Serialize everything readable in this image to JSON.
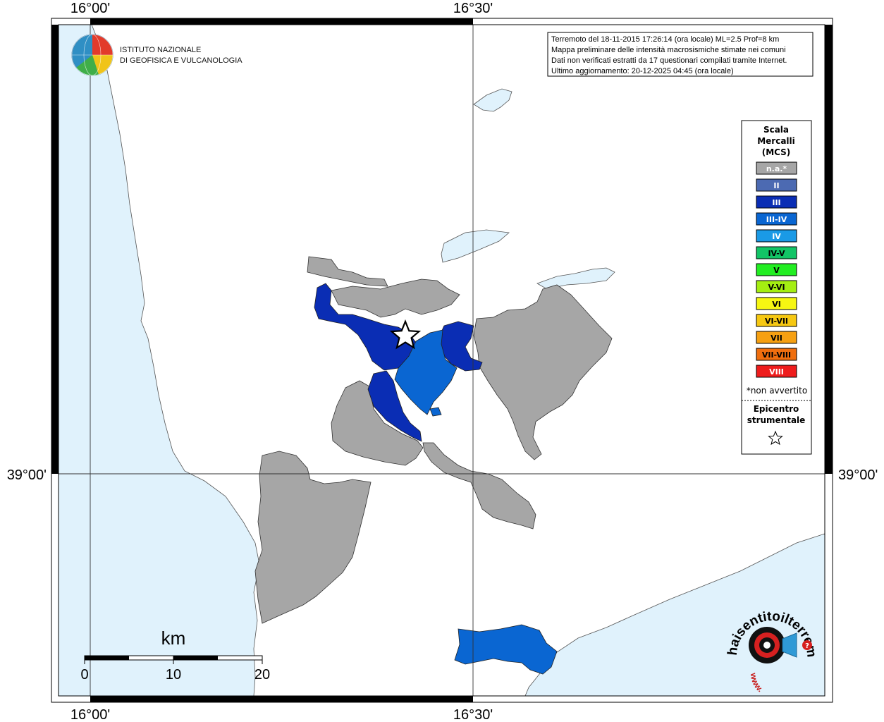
{
  "coordinates": {
    "top_left": "16°00'",
    "top_right": "16°30'",
    "bottom_left": "16°00'",
    "bottom_right": "16°30'",
    "left_lat": "39°00'",
    "right_lat": "39°00'"
  },
  "institute": {
    "line1": "ISTITUTO NAZIONALE",
    "line2": "DI GEOFISICA E VULCANOLOGIA"
  },
  "info_box": {
    "line1": "Terremoto del 18-11-2015 17:26:14 (ora locale) ML=2.5 Prof=8 km",
    "line2": "Mappa preliminare delle intensità macrosismiche stimate nei comuni",
    "line3": "Dati non verificati estratti da 17 questionari compilati tramite Internet.",
    "line4": "Ultimo aggiornamento: 20-12-2025 04:45 (ora locale)"
  },
  "legend": {
    "title1": "Scala",
    "title2": "Mercalli",
    "title3": "(MCS)",
    "items": [
      {
        "label": "n.a.*",
        "color": "#a6a6a6",
        "text_color": "#ffffff"
      },
      {
        "label": "II",
        "color": "#4c6ab2",
        "text_color": "#ffffff"
      },
      {
        "label": "III",
        "color": "#0a2db4",
        "text_color": "#ffffff"
      },
      {
        "label": "III-IV",
        "color": "#0a66d2",
        "text_color": "#ffffff"
      },
      {
        "label": "IV",
        "color": "#1a9ae6",
        "text_color": "#ffffff"
      },
      {
        "label": "IV-V",
        "color": "#12c466",
        "text_color": "#000000"
      },
      {
        "label": "V",
        "color": "#22ee22",
        "text_color": "#000000"
      },
      {
        "label": "V-VI",
        "color": "#a4ee12",
        "text_color": "#000000"
      },
      {
        "label": "VI",
        "color": "#f6f612",
        "text_color": "#000000"
      },
      {
        "label": "VI-VII",
        "color": "#f6c812",
        "text_color": "#000000"
      },
      {
        "label": "VII",
        "color": "#f6a012",
        "text_color": "#000000"
      },
      {
        "label": "VII-VIII",
        "color": "#f06e0e",
        "text_color": "#000000"
      },
      {
        "label": "VIII",
        "color": "#ee1c1c",
        "text_color": "#ffffff"
      }
    ],
    "note": "*non avvertito",
    "epicenter1": "Epicentro",
    "epicenter2": "strumentale"
  },
  "scale_bar": {
    "unit": "km",
    "ticks": [
      "0",
      "10",
      "20"
    ]
  },
  "site_logo": {
    "text": "haisentitoilterremoto.it",
    "prefix": "www."
  },
  "colors": {
    "sea": "#e0f2fc",
    "not_felt": "#a6a6a6",
    "intensity_III": "#0a2db4",
    "intensity_III_IV": "#0a66d2"
  }
}
